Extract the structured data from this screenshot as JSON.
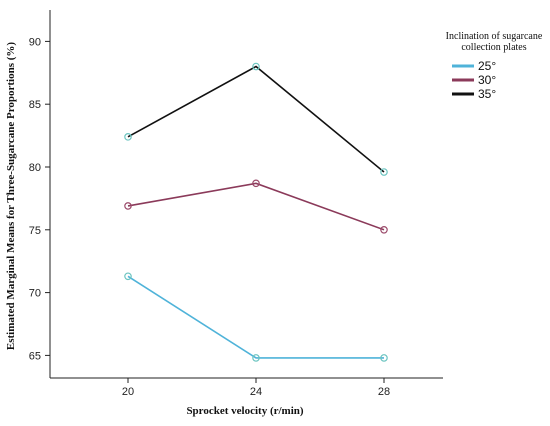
{
  "chart_data": {
    "type": "line",
    "title": "",
    "xlabel": "Sprocket velocity (r/min)",
    "ylabel": "Estimated Marginal Means for Three-Sugarcane Proportions (%)",
    "categories": [
      "20",
      "24",
      "28"
    ],
    "yticks": [
      "65",
      "70",
      "75",
      "80",
      "85",
      "90"
    ],
    "ylim": [
      63.2,
      92.5
    ],
    "legend": {
      "title_line1": "Inclination of sugarcane",
      "title_line2": "collection plates",
      "position": "top-right"
    },
    "series": [
      {
        "name": "25°",
        "values": [
          71.3,
          64.8,
          64.8
        ],
        "color": "#4fb3d9",
        "marker_color": "#6cc4c0"
      },
      {
        "name": "30°",
        "values": [
          76.9,
          78.7,
          75.0
        ],
        "color": "#8b3a5a",
        "marker_color": "#9b4a6a"
      },
      {
        "name": "35°",
        "values": [
          82.4,
          88.0,
          79.6
        ],
        "color": "#111111",
        "marker_color": "#6cc4c0"
      }
    ]
  }
}
